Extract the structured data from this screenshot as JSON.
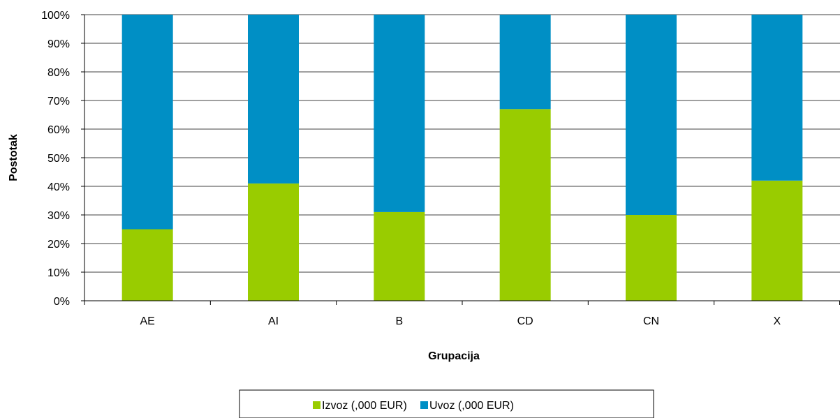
{
  "chart_data": {
    "type": "bar",
    "stacked": true,
    "categories": [
      "AE",
      "AI",
      "B",
      "CD",
      "CN",
      "X"
    ],
    "series": [
      {
        "name": "Izvoz (,000 EUR)",
        "color": "#99cc00",
        "values": [
          25,
          41,
          31,
          67,
          30,
          42
        ]
      },
      {
        "name": "Uvoz (,000 EUR)",
        "color": "#008fc5",
        "values": [
          75,
          59,
          69,
          33,
          70,
          58
        ]
      }
    ],
    "xlabel": "Grupacija",
    "ylabel": "Postotak",
    "ylim": [
      0,
      100
    ],
    "yticks": [
      "0%",
      "10%",
      "20%",
      "30%",
      "40%",
      "50%",
      "60%",
      "70%",
      "80%",
      "90%",
      "100%"
    ],
    "grid": true,
    "legend": "bottom-center"
  }
}
